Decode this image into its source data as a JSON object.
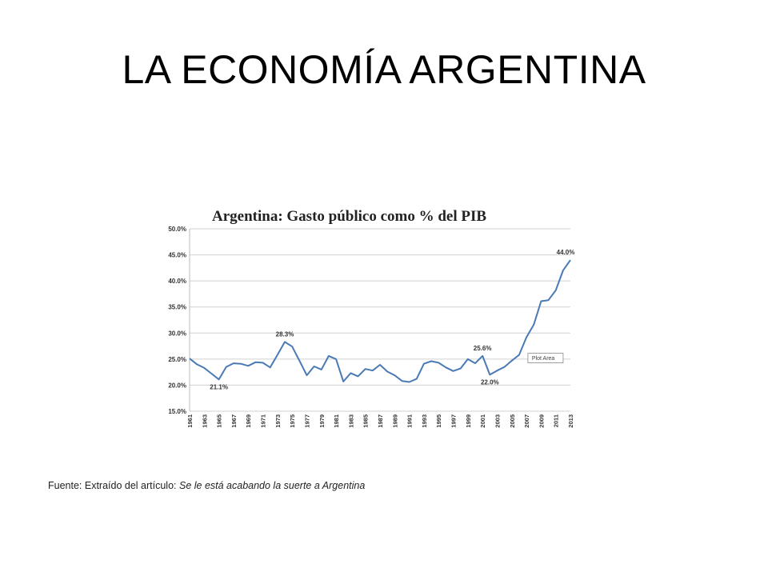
{
  "slide": {
    "title": "LA ECONOMÍA ARGENTINA",
    "source_prefix": "Fuente: Extraído del artículo: ",
    "source_article": "Se le está acabando la suerte a Argentina"
  },
  "chart_data": {
    "type": "line",
    "title": "Argentina: Gasto público como % del PIB",
    "xlabel": "",
    "ylabel": "",
    "ylim": [
      15,
      50
    ],
    "y_ticks": [
      15,
      20,
      25,
      30,
      35,
      40,
      45,
      50
    ],
    "y_tick_format": "0.0%",
    "grid": true,
    "line_color": "#4a7ab5",
    "x_tick_labels": [
      "1961",
      "1963",
      "1965",
      "1967",
      "1969",
      "1971",
      "1973",
      "1975",
      "1977",
      "1979",
      "1981",
      "1983",
      "1985",
      "1987",
      "1989",
      "1991",
      "1993",
      "1995",
      "1997",
      "1999",
      "2001",
      "2003",
      "2005",
      "2007",
      "2009",
      "2011",
      "2013"
    ],
    "x": [
      1961,
      1962,
      1963,
      1964,
      1965,
      1966,
      1967,
      1968,
      1969,
      1970,
      1971,
      1972,
      1973,
      1974,
      1975,
      1976,
      1977,
      1978,
      1979,
      1980,
      1981,
      1982,
      1983,
      1984,
      1985,
      1986,
      1987,
      1988,
      1989,
      1990,
      1991,
      1992,
      1993,
      1994,
      1995,
      1996,
      1997,
      1998,
      1999,
      2000,
      2001,
      2002,
      2003,
      2004,
      2005,
      2006,
      2007,
      2008,
      2009,
      2010,
      2011,
      2012,
      2013
    ],
    "series": [
      {
        "values": [
          25.1,
          24.0,
          23.3,
          22.2,
          21.1,
          23.5,
          24.2,
          24.1,
          23.7,
          24.4,
          24.3,
          23.4,
          25.8,
          28.3,
          27.4,
          24.7,
          21.9,
          23.6,
          23.0,
          25.6,
          25.0,
          20.7,
          22.3,
          21.7,
          23.1,
          22.8,
          23.9,
          22.6,
          21.9,
          20.8,
          20.6,
          21.2,
          24.1,
          24.6,
          24.3,
          23.4,
          22.7,
          23.2,
          25.0,
          24.2,
          25.6,
          22.0,
          22.8,
          23.5,
          24.7,
          25.8,
          29.2,
          31.6,
          36.1,
          36.3,
          38.2,
          42.0,
          44.0
        ]
      }
    ],
    "data_labels": [
      {
        "x": 1965,
        "label": "21.1%"
      },
      {
        "x": 1974,
        "label": "28.3%"
      },
      {
        "x": 2001,
        "label": "25.6%"
      },
      {
        "x": 2002,
        "label": "22.0%"
      },
      {
        "x": 2013,
        "label": "44.0%"
      }
    ],
    "tooltip": "Plot Area"
  }
}
